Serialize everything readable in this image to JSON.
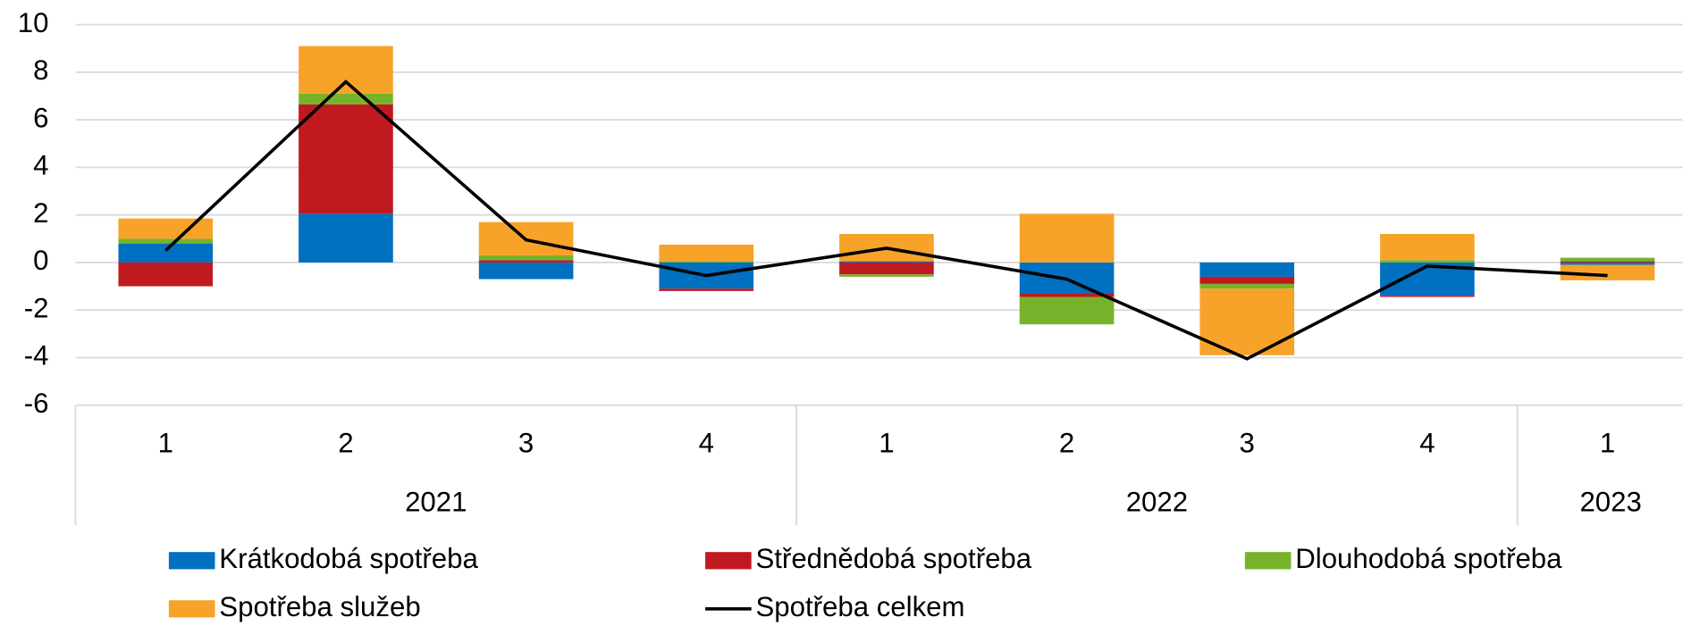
{
  "chart_data": {
    "type": "stacked_bar_line",
    "categories": [
      "1",
      "2",
      "3",
      "4",
      "1",
      "2",
      "3",
      "4",
      "1"
    ],
    "groups": [
      {
        "name": "2021",
        "count": 4
      },
      {
        "name": "2022",
        "count": 4
      },
      {
        "name": "2023",
        "count": 1
      }
    ],
    "ylim": [
      -6,
      10
    ],
    "yticks": [
      -6,
      -4,
      -2,
      0,
      2,
      4,
      6,
      8,
      10
    ],
    "grid": true,
    "series": [
      {
        "name": "Krátkodobá spotřeba",
        "color": "#0070c0",
        "kind": "bar",
        "values": [
          0.8,
          2.05,
          -0.7,
          -1.1,
          0.05,
          -1.3,
          -0.6,
          -1.4,
          -0.1
        ]
      },
      {
        "name": "Střednědobá spotřeba",
        "color": "#c0191f",
        "kind": "bar",
        "values": [
          -1.0,
          4.6,
          0.1,
          -0.1,
          -0.5,
          -0.15,
          -0.3,
          -0.05,
          0.05
        ]
      },
      {
        "name": "Dlouhodobá spotřeba",
        "color": "#77b32a",
        "kind": "bar",
        "values": [
          0.2,
          0.45,
          0.2,
          0.05,
          -0.1,
          -1.15,
          -0.2,
          0.1,
          0.15
        ]
      },
      {
        "name": "Spotřeba služeb",
        "color": "#f7a229",
        "kind": "bar",
        "values": [
          0.85,
          2.0,
          1.4,
          0.7,
          1.15,
          2.05,
          -2.8,
          1.1,
          -0.65
        ]
      },
      {
        "name": "Spotřeba celkem",
        "color": "#000000",
        "kind": "line",
        "values": [
          0.5,
          7.6,
          0.95,
          -0.55,
          0.6,
          -0.7,
          -4.05,
          -0.15,
          -0.55
        ]
      }
    ]
  }
}
